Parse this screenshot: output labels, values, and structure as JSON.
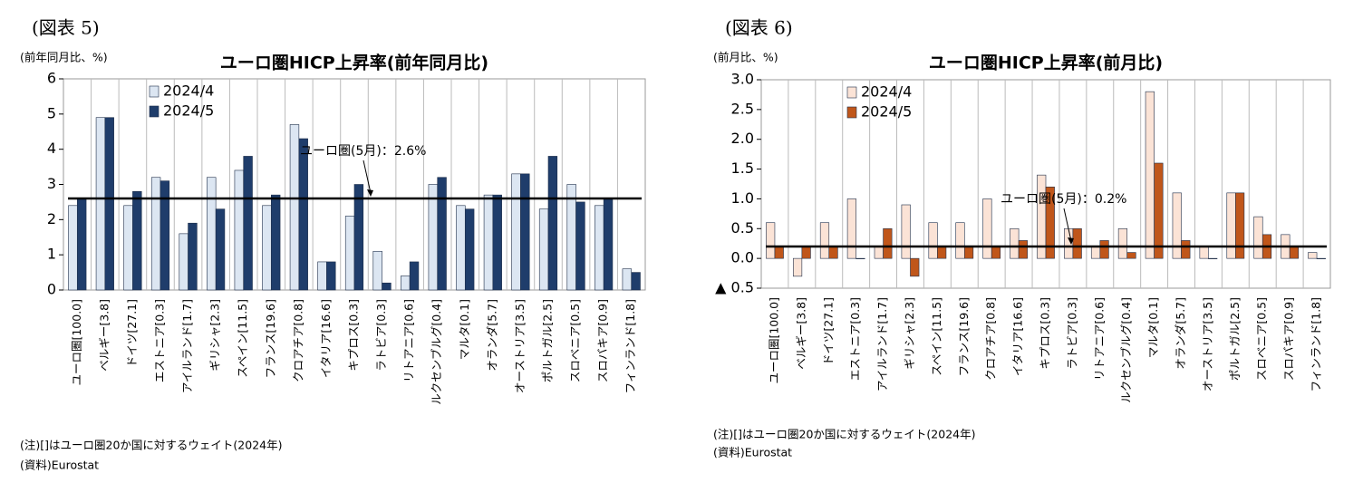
{
  "chart_data": [
    {
      "type": "bar",
      "figure_label": "(図表 5)",
      "title": "ユーロ圏HICP上昇率(前年同月比)",
      "y_unit": "(前年同月比、%)",
      "categories": [
        "ユーロ圏[100.0]",
        "ベルギー[3.8]",
        "ドイツ[27.1]",
        "エストニア[0.3]",
        "アイルランド[1.7]",
        "ギリシャ[2.3]",
        "スペイン[11.5]",
        "フランス[19.6]",
        "クロアチア[0.8]",
        "イタリア[16.6]",
        "キプロス[0.3]",
        "ラトビア[0.3]",
        "リトアニア[0.6]",
        "ルクセンブルグ[0.4]",
        "マルタ[0.1]",
        "オランダ[5.7]",
        "オーストリア[3.5]",
        "ポルトガル[2.5]",
        "スロベニア[0.5]",
        "スロバキア[0.9]",
        "フィンランド[1.8]"
      ],
      "series": [
        {
          "name": "2024/4",
          "color": "#dce6f2",
          "values": [
            2.4,
            4.9,
            2.4,
            3.2,
            1.6,
            3.2,
            3.4,
            2.4,
            4.7,
            0.8,
            2.1,
            1.1,
            0.4,
            3.0,
            2.4,
            2.7,
            3.3,
            2.3,
            3.0,
            2.4,
            0.6
          ]
        },
        {
          "name": "2024/5",
          "color": "#1f3d6b",
          "values": [
            2.6,
            4.9,
            2.8,
            3.1,
            1.9,
            2.3,
            3.8,
            2.7,
            4.3,
            0.8,
            3.0,
            0.2,
            0.8,
            3.2,
            2.3,
            2.7,
            3.3,
            3.8,
            2.5,
            2.6,
            0.5
          ]
        }
      ],
      "ylim": [
        0,
        6
      ],
      "yticks": [
        0,
        1,
        2,
        3,
        4,
        5,
        6
      ],
      "reference": {
        "value": 2.6,
        "label": "ユーロ圏(5月)：2.6%"
      },
      "legend": "upper-left",
      "note": "(注)[]はユーロ圏20か国に対するウェイト(2024年)",
      "source": "(資料)Eurostat"
    },
    {
      "type": "bar",
      "figure_label": "(図表 6)",
      "title": "ユーロ圏HICP上昇率(前月比)",
      "y_unit": "(前月比、%)",
      "categories": [
        "ユーロ圏[100.0]",
        "ベルギー[3.8]",
        "ドイツ[27.1]",
        "エストニア[0.3]",
        "アイルランド[1.7]",
        "ギリシャ[2.3]",
        "スペイン[11.5]",
        "フランス[19.6]",
        "クロアチア[0.8]",
        "イタリア[16.6]",
        "キプロス[0.3]",
        "ラトビア[0.3]",
        "リトアニア[0.6]",
        "ルクセンブルグ[0.4]",
        "マルタ[0.1]",
        "オランダ[5.7]",
        "オーストリア[3.5]",
        "ポルトガル[2.5]",
        "スロベニア[0.5]",
        "スロバキア[0.9]",
        "フィンランド[1.8]"
      ],
      "series": [
        {
          "name": "2024/4",
          "color": "#fbe3d6",
          "values": [
            0.6,
            -0.3,
            0.6,
            1.0,
            0.2,
            0.9,
            0.6,
            0.6,
            1.0,
            0.5,
            1.4,
            0.5,
            0.2,
            0.5,
            2.8,
            1.1,
            0.2,
            1.1,
            0.7,
            0.4,
            0.1
          ]
        },
        {
          "name": "2024/5",
          "color": "#c0561a",
          "values": [
            0.2,
            0.2,
            0.2,
            0.0,
            0.5,
            -0.3,
            0.2,
            0.2,
            0.2,
            0.3,
            1.2,
            0.5,
            0.3,
            0.1,
            1.6,
            0.3,
            0.0,
            1.1,
            0.4,
            0.2,
            0.0
          ]
        }
      ],
      "ylim": [
        -0.5,
        3.0
      ],
      "yticks": [
        {
          "value": -0.5,
          "label": "▲ 0.5"
        },
        {
          "value": 0,
          "label": "0.0"
        },
        0.5,
        {
          "value": 1,
          "label": "1.0"
        },
        1.5,
        {
          "value": 2,
          "label": "2.0"
        },
        2.5,
        {
          "value": 3,
          "label": "3.0"
        }
      ],
      "reference": {
        "value": 0.2,
        "label": "ユーロ圏(5月)：0.2%"
      },
      "legend": "upper-left",
      "note": "(注)[]はユーロ圏20か国に対するウェイト(2024年)",
      "source": "(資料)Eurostat"
    }
  ]
}
